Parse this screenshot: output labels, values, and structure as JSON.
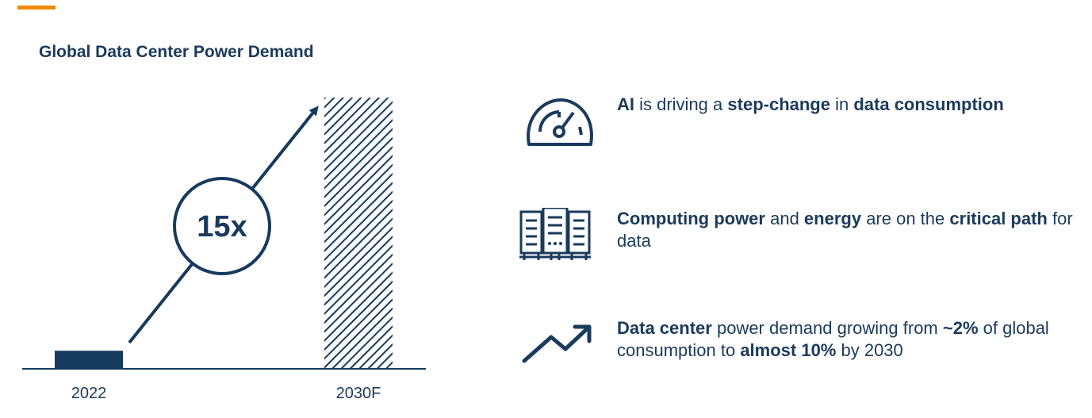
{
  "chart_data": {
    "type": "bar",
    "title": "Global Data Center Power Demand",
    "categories": [
      "2022",
      "2030F"
    ],
    "values": [
      1,
      15
    ],
    "multiplier_label": "15x",
    "note": "2030F shown as forecast (hatched bar); arrow indicates growth",
    "colors": {
      "actual": "#163a5e",
      "forecast_hatch": "#163a5e",
      "axis": "#163a5e"
    }
  },
  "highlights": [
    {
      "icon": "speedometer-icon",
      "segments": [
        {
          "text": "AI",
          "bold": true
        },
        {
          "text": " is driving a ",
          "bold": false
        },
        {
          "text": "step-change",
          "bold": true
        },
        {
          "text": " in ",
          "bold": false
        },
        {
          "text": "data consumption",
          "bold": true
        }
      ]
    },
    {
      "icon": "server-racks-icon",
      "segments": [
        {
          "text": "Computing power",
          "bold": true
        },
        {
          "text": " and ",
          "bold": false
        },
        {
          "text": "energy",
          "bold": true
        },
        {
          "text": " are on the ",
          "bold": false
        },
        {
          "text": "critical path",
          "bold": true
        },
        {
          "text": " for data",
          "bold": false
        }
      ]
    },
    {
      "icon": "trend-up-icon",
      "segments": [
        {
          "text": "Data center",
          "bold": true
        },
        {
          "text": " power demand growing from ",
          "bold": false
        },
        {
          "text": "~2%",
          "bold": true
        },
        {
          "text": " of global consumption to ",
          "bold": false
        },
        {
          "text": "almost 10%",
          "bold": true
        },
        {
          "text": " by 2030",
          "bold": false
        }
      ]
    }
  ],
  "colors": {
    "accent": "#f08a00",
    "navy": "#1b3a5c"
  }
}
